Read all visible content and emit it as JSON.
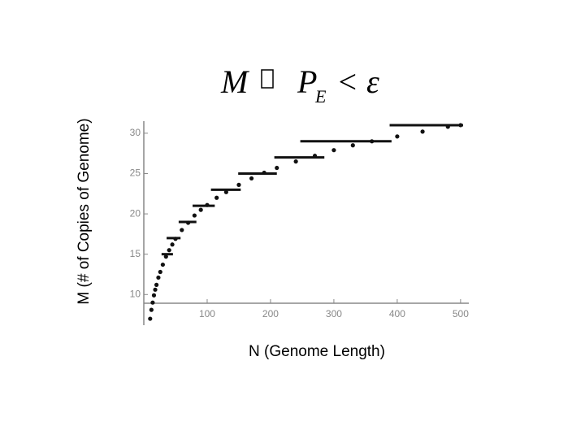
{
  "chart_data": {
    "type": "scatter",
    "title": {
      "lhs": "M",
      "main": "P",
      "sub": "E",
      "rhs": "< ε"
    },
    "x_label": "N (Genome Length)",
    "y_label": "M (# of Copies of Genome)",
    "x": [
      10,
      12,
      14,
      16,
      18,
      20,
      23,
      26,
      30,
      35,
      40,
      45,
      50,
      60,
      70,
      80,
      90,
      100,
      115,
      130,
      150,
      170,
      190,
      210,
      240,
      270,
      300,
      330,
      360,
      400,
      440,
      480,
      500
    ],
    "values": [
      7.0,
      8.1,
      9.0,
      9.9,
      10.6,
      11.2,
      12.1,
      12.8,
      13.7,
      14.7,
      15.5,
      16.2,
      16.9,
      18.0,
      18.9,
      19.8,
      20.5,
      21.1,
      22.0,
      22.7,
      23.6,
      24.4,
      25.1,
      25.7,
      26.5,
      27.2,
      27.9,
      28.5,
      29.0,
      29.6,
      30.2,
      30.8,
      31.0
    ],
    "steps": [
      {
        "y": 15,
        "x": [
          28,
          46
        ]
      },
      {
        "y": 17,
        "x": [
          36,
          58
        ]
      },
      {
        "y": 19,
        "x": [
          55,
          83
        ]
      },
      {
        "y": 21,
        "x": [
          77,
          112
        ]
      },
      {
        "y": 23,
        "x": [
          106,
          153
        ]
      },
      {
        "y": 25,
        "x": [
          149,
          210
        ]
      },
      {
        "y": 27,
        "x": [
          206,
          285
        ]
      },
      {
        "y": 29,
        "x": [
          247,
          391
        ]
      },
      {
        "y": 31,
        "x": [
          388,
          504
        ]
      }
    ],
    "color": "#111111",
    "xlim": [
      0,
      513
    ],
    "ylim": [
      6.5,
      31.5
    ],
    "xticks": [
      100,
      200,
      300,
      400,
      500
    ],
    "yticks": [
      10,
      15,
      20,
      25,
      30
    ]
  }
}
